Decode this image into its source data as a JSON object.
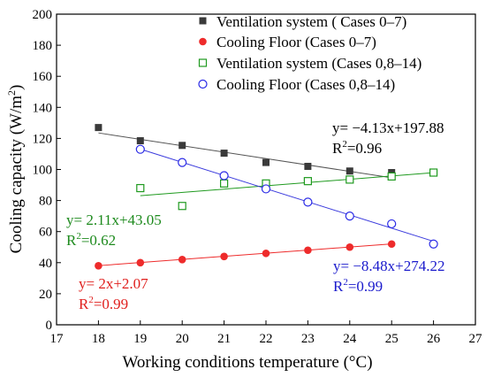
{
  "chart_data": {
    "type": "scatter",
    "xlabel": "Working conditions temperature (°C)",
    "ylabel_main": "Cooling capacity (W/m",
    "ylabel_sup": "2",
    "ylabel_close": ")",
    "xlim": [
      17,
      27
    ],
    "ylim": [
      0,
      200
    ],
    "xticks": [
      17,
      18,
      19,
      20,
      21,
      22,
      23,
      24,
      25,
      26,
      27
    ],
    "yticks": [
      0,
      20,
      40,
      60,
      80,
      100,
      120,
      140,
      160,
      180,
      200
    ],
    "grid": false,
    "legend_position": "top-right",
    "series": [
      {
        "name": "Ventilation system ( Cases 0–7)",
        "marker": "filled-square",
        "color": "#3a3a3a",
        "x": [
          18,
          19,
          20,
          21,
          22,
          23,
          24,
          25
        ],
        "y": [
          127,
          118.5,
          115.5,
          110.5,
          104.5,
          102,
          99,
          98
        ],
        "fit": {
          "x": [
            18,
            25
          ],
          "y": [
            123.54,
            94.63
          ],
          "color": "#555555"
        },
        "equation": "y= −4.13x+197.88",
        "r2_prefix": "R",
        "r2_sup": "2",
        "r2_suffix": "=0.96",
        "label_color": "#000000"
      },
      {
        "name": "Cooling Floor (Cases 0–7)",
        "marker": "filled-circle",
        "color": "#ee2b2b",
        "x": [
          18,
          19,
          20,
          21,
          22,
          23,
          24,
          25
        ],
        "y": [
          38,
          40,
          42,
          44,
          46,
          48,
          50,
          52
        ],
        "fit": {
          "x": [
            18,
            25
          ],
          "y": [
            38.07,
            52.07
          ],
          "color": "#ee2b2b"
        },
        "equation": "y= 2x+2.07",
        "r2_prefix": "R",
        "r2_sup": "2",
        "r2_suffix": "=0.99",
        "label_color": "#e0201e"
      },
      {
        "name": "Ventilation system (Cases 0,8–14)",
        "marker": "open-square",
        "color": "#1f9a1f",
        "x": [
          19,
          20,
          21,
          22,
          23,
          24,
          25,
          26
        ],
        "y": [
          88,
          76.5,
          91,
          91,
          92.5,
          93.5,
          95.5,
          98
        ],
        "fit": {
          "x": [
            19,
            26
          ],
          "y": [
            83.14,
            97.91
          ],
          "color": "#1f9a1f"
        },
        "equation": "y= 2.11x+43.05",
        "r2_prefix": "R",
        "r2_sup": "2",
        "r2_suffix": "=0.62",
        "label_color": "#1d8a1d"
      },
      {
        "name": "Cooling Floor (Cases 0,8–14)",
        "marker": "open-circle",
        "color": "#2a2ae6",
        "x": [
          19,
          20,
          21,
          22,
          23,
          24,
          25,
          26
        ],
        "y": [
          113,
          104.5,
          96,
          87.5,
          79,
          70,
          65,
          52
        ],
        "fit": {
          "x": [
            19,
            26
          ],
          "y": [
            113.1,
            53.74
          ],
          "color": "#3b3bdd"
        },
        "equation": "y= −8.48x+274.22",
        "r2_prefix": "R",
        "r2_sup": "2",
        "r2_suffix": "=0.99",
        "label_color": "#1a1acc"
      }
    ]
  }
}
